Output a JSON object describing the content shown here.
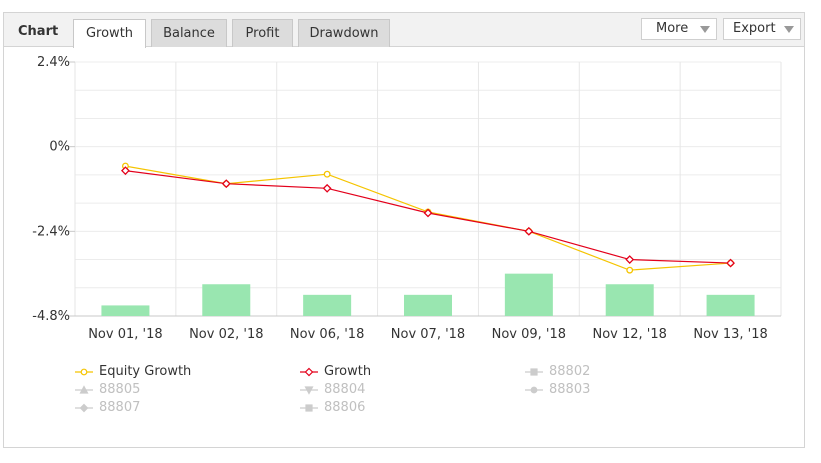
{
  "header": {
    "chart_label": "Chart",
    "tabs": [
      {
        "label": "Growth",
        "active": true
      },
      {
        "label": "Balance",
        "active": false
      },
      {
        "label": "Profit",
        "active": false
      },
      {
        "label": "Drawdown",
        "active": false
      }
    ],
    "more_label": "More",
    "export_label": "Export"
  },
  "chart_data": {
    "type": "line",
    "categories": [
      "Nov 01, '18",
      "Nov 02, '18",
      "Nov 06, '18",
      "Nov 07, '18",
      "Nov 09, '18",
      "Nov 12, '18",
      "Nov 13, '18"
    ],
    "y_ticks": [
      "2.4%",
      "0%",
      "-2.4%",
      "-4.8%"
    ],
    "ylim": [
      -4.8,
      2.4
    ],
    "grid": true,
    "series": [
      {
        "name": "Equity Growth",
        "color": "#f5c400",
        "values": [
          -0.55,
          -1.05,
          -0.78,
          -1.85,
          -2.4,
          -3.5,
          -3.3
        ],
        "marker": "circle"
      },
      {
        "name": "Growth",
        "color": "#e3001b",
        "values": [
          -0.68,
          -1.05,
          -1.18,
          -1.88,
          -2.4,
          -3.2,
          -3.3
        ],
        "marker": "diamond"
      }
    ],
    "bars": {
      "color": "#99e6b0",
      "values": [
        0.3,
        0.9,
        0.6,
        0.6,
        1.2,
        0.9,
        0.6
      ]
    },
    "legend_placement": "bottom",
    "legend": [
      {
        "name": "Equity Growth",
        "color": "#f5c400",
        "marker": "circle",
        "active": true
      },
      {
        "name": "Growth",
        "color": "#e3001b",
        "marker": "diamond",
        "active": true
      },
      {
        "name": "88802",
        "color": "#cccccc",
        "marker": "square",
        "active": false
      },
      {
        "name": "88805",
        "color": "#cccccc",
        "marker": "triangle",
        "active": false
      },
      {
        "name": "88804",
        "color": "#cccccc",
        "marker": "triangle-down",
        "active": false
      },
      {
        "name": "88803",
        "color": "#cccccc",
        "marker": "circle",
        "active": false
      },
      {
        "name": "88807",
        "color": "#cccccc",
        "marker": "diamond",
        "active": false
      },
      {
        "name": "88806",
        "color": "#cccccc",
        "marker": "square",
        "active": false
      }
    ]
  }
}
